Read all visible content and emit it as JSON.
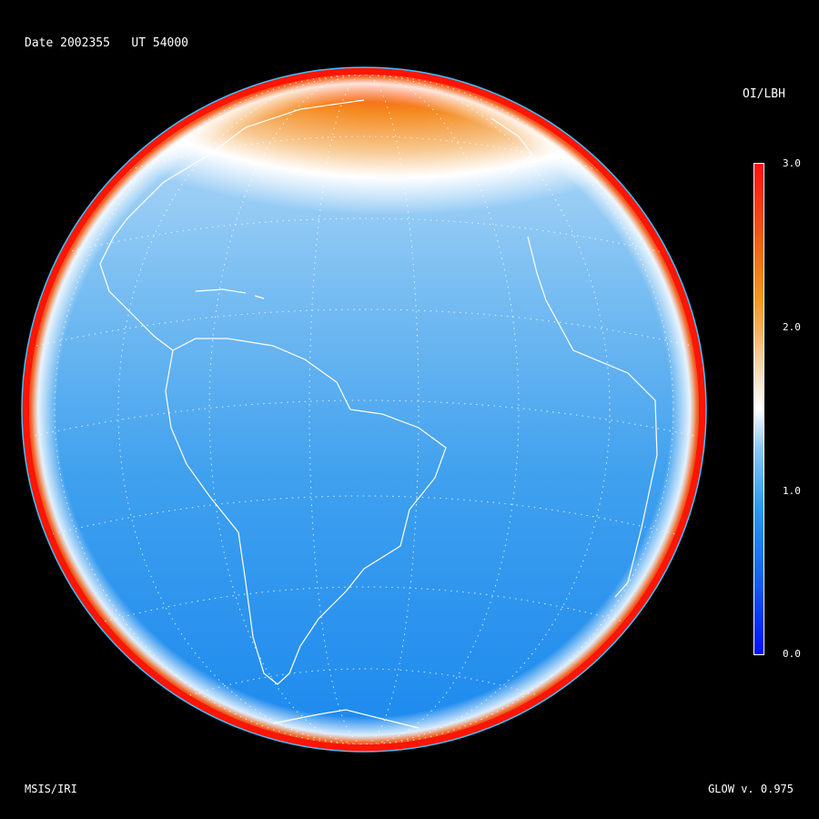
{
  "header": {
    "title": "Date 2002355   UT 54000"
  },
  "colorbar": {
    "label": "OI/LBH",
    "ticks": [
      "3.0",
      "2.0",
      "1.0",
      "0.0"
    ],
    "range": [
      0.0,
      3.0
    ],
    "colors": {
      "low": "#0010ff",
      "mid": "#ffffff",
      "high": "#ff1010"
    }
  },
  "footer": {
    "left": "MSIS/IRI",
    "right": "GLOW v. 0.975"
  },
  "map": {
    "projection": "orthographic",
    "graticule": "dotted",
    "coastlines": "white"
  }
}
